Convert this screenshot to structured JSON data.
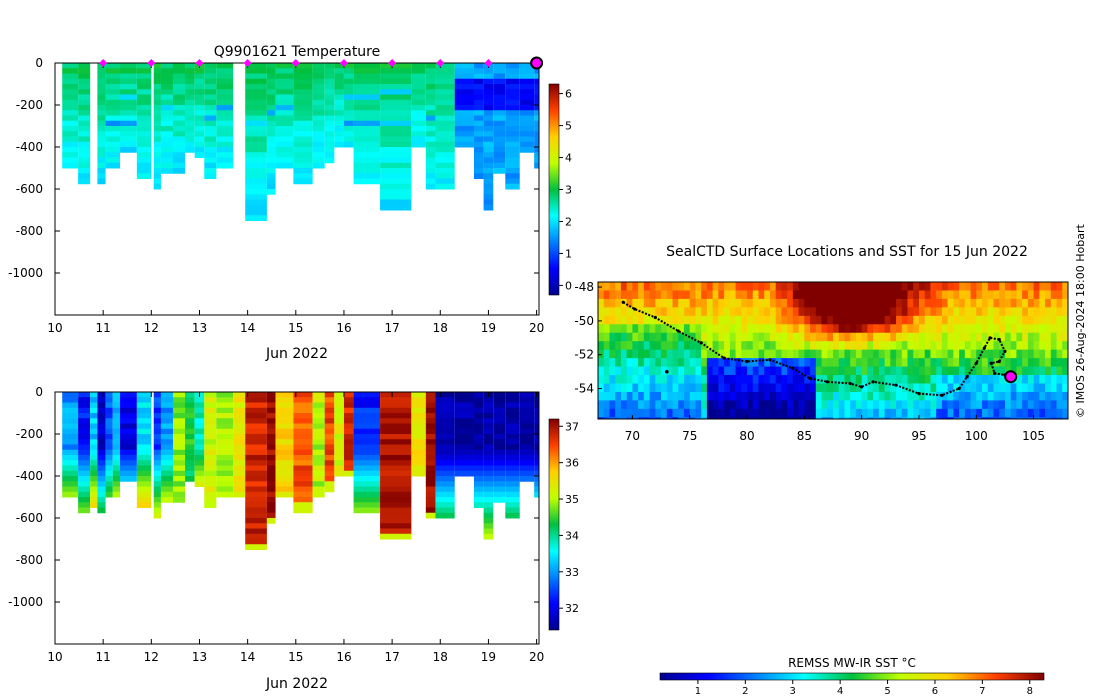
{
  "chart_data": [
    {
      "type": "heatmap",
      "title": "Q9901621  Temperature",
      "xlabel": "Jun 2022",
      "ylabel": "",
      "xlim": [
        10,
        20.05
      ],
      "ylim": [
        -1200,
        0
      ],
      "x_ticks": [
        10,
        11,
        12,
        13,
        14,
        15,
        16,
        17,
        18,
        19,
        20
      ],
      "y_ticks": [
        0,
        -200,
        -400,
        -600,
        -800,
        -1000
      ],
      "colorbar": {
        "min": -0.3,
        "max": 6.3,
        "ticks": [
          0,
          1,
          2,
          3,
          4,
          5,
          6
        ]
      },
      "surface_markers_x": [
        11,
        12,
        13,
        14,
        15,
        16,
        17,
        18,
        19
      ],
      "current_marker_x": 20,
      "profiles": [
        {
          "x": 10.15,
          "w": 0.33,
          "depth": 500
        },
        {
          "x": 10.48,
          "w": 0.25,
          "depth": 575
        },
        {
          "x": 10.88,
          "w": 0.17,
          "depth": 560
        },
        {
          "x": 11.05,
          "w": 0.3,
          "depth": 500
        },
        {
          "x": 11.35,
          "w": 0.35,
          "depth": 420
        },
        {
          "x": 11.7,
          "w": 0.3,
          "depth": 540
        },
        {
          "x": 12.05,
          "w": 0.15,
          "depth": 580
        },
        {
          "x": 12.2,
          "w": 0.25,
          "depth": 510
        },
        {
          "x": 12.45,
          "w": 0.25,
          "depth": 520
        },
        {
          "x": 12.7,
          "w": 0.2,
          "depth": 420
        },
        {
          "x": 12.9,
          "w": 0.2,
          "depth": 430
        },
        {
          "x": 13.1,
          "w": 0.25,
          "depth": 550
        },
        {
          "x": 13.35,
          "w": 0.35,
          "depth": 500
        },
        {
          "x": 13.95,
          "w": 0.45,
          "depth": 745
        },
        {
          "x": 14.4,
          "w": 0.18,
          "depth": 620
        },
        {
          "x": 14.58,
          "w": 0.37,
          "depth": 500
        },
        {
          "x": 14.95,
          "w": 0.4,
          "depth": 560
        },
        {
          "x": 15.35,
          "w": 0.25,
          "depth": 480
        },
        {
          "x": 15.6,
          "w": 0.2,
          "depth": 460
        },
        {
          "x": 15.8,
          "w": 0.2,
          "depth": 380
        },
        {
          "x": 16.0,
          "w": 0.2,
          "depth": 400
        },
        {
          "x": 16.2,
          "w": 0.55,
          "depth": 565
        },
        {
          "x": 16.75,
          "w": 0.65,
          "depth": 700
        },
        {
          "x": 17.4,
          "w": 0.3,
          "depth": 380
        },
        {
          "x": 17.7,
          "w": 0.2,
          "depth": 590
        },
        {
          "x": 17.9,
          "w": 0.4,
          "depth": 600
        },
        {
          "x": 18.3,
          "w": 0.4,
          "depth": 400
        },
        {
          "x": 18.7,
          "w": 0.2,
          "depth": 550
        },
        {
          "x": 18.9,
          "w": 0.2,
          "depth": 700
        },
        {
          "x": 19.1,
          "w": 0.25,
          "depth": 520
        },
        {
          "x": 19.35,
          "w": 0.3,
          "depth": 580
        },
        {
          "x": 19.65,
          "w": 0.3,
          "depth": 420
        },
        {
          "x": 19.95,
          "w": 0.1,
          "depth": 500
        }
      ],
      "temp_surface": 2.9,
      "temp_deep": 2.0,
      "temp_east_surface": 1.6,
      "temp_east_core": 0.4
    },
    {
      "type": "heatmap",
      "title": "",
      "xlabel": "Jun 2022",
      "ylabel": "",
      "xlim": [
        10,
        20.05
      ],
      "ylim": [
        -1200,
        0
      ],
      "x_ticks": [
        10,
        11,
        12,
        13,
        14,
        15,
        16,
        17,
        18,
        19,
        20
      ],
      "y_ticks": [
        0,
        -200,
        -400,
        -600,
        -800,
        -1000
      ],
      "colorbar": {
        "min": 31.4,
        "max": 37.2,
        "ticks": [
          32,
          33,
          34,
          35,
          36,
          37
        ]
      },
      "salinity_columns": [
        {
          "x": 10.15,
          "w": 0.33,
          "v": 33.0,
          "depth": 500
        },
        {
          "x": 10.48,
          "w": 0.25,
          "v": 32.2,
          "depth": 575
        },
        {
          "x": 10.73,
          "w": 0.15,
          "v": 33.3,
          "depth": 540
        },
        {
          "x": 10.88,
          "w": 0.17,
          "v": 31.8,
          "depth": 560
        },
        {
          "x": 11.05,
          "w": 0.15,
          "v": 32.6,
          "depth": 500
        },
        {
          "x": 11.2,
          "w": 0.15,
          "v": 33.1,
          "depth": 480
        },
        {
          "x": 11.35,
          "w": 0.35,
          "v": 32.0,
          "depth": 420
        },
        {
          "x": 11.7,
          "w": 0.3,
          "v": 33.4,
          "depth": 540
        },
        {
          "x": 12.05,
          "w": 0.15,
          "v": 32.5,
          "depth": 580
        },
        {
          "x": 12.2,
          "w": 0.25,
          "v": 33.0,
          "depth": 510
        },
        {
          "x": 12.45,
          "w": 0.25,
          "v": 34.8,
          "depth": 520
        },
        {
          "x": 12.7,
          "w": 0.2,
          "v": 34.3,
          "depth": 420
        },
        {
          "x": 12.9,
          "w": 0.2,
          "v": 33.8,
          "depth": 430
        },
        {
          "x": 13.1,
          "w": 0.25,
          "v": 35.2,
          "depth": 550
        },
        {
          "x": 13.35,
          "w": 0.35,
          "v": 34.9,
          "depth": 500
        },
        {
          "x": 13.7,
          "w": 0.25,
          "v": 35.4,
          "depth": 500
        },
        {
          "x": 13.95,
          "w": 0.45,
          "v": 36.8,
          "depth": 745
        },
        {
          "x": 14.4,
          "w": 0.18,
          "v": 37.1,
          "depth": 620
        },
        {
          "x": 14.58,
          "w": 0.37,
          "v": 35.6,
          "depth": 500
        },
        {
          "x": 14.95,
          "w": 0.4,
          "v": 36.4,
          "depth": 560
        },
        {
          "x": 15.35,
          "w": 0.25,
          "v": 35.0,
          "depth": 480
        },
        {
          "x": 15.6,
          "w": 0.2,
          "v": 36.5,
          "depth": 460
        },
        {
          "x": 15.8,
          "w": 0.2,
          "v": 35.2,
          "depth": 380
        },
        {
          "x": 16.0,
          "w": 0.2,
          "v": 36.7,
          "depth": 400
        },
        {
          "x": 16.2,
          "w": 0.55,
          "v": 32.3,
          "depth": 565
        },
        {
          "x": 16.75,
          "w": 0.65,
          "v": 37.0,
          "depth": 700
        },
        {
          "x": 17.4,
          "w": 0.3,
          "v": 35.5,
          "depth": 380
        },
        {
          "x": 17.7,
          "w": 0.2,
          "v": 37.1,
          "depth": 590
        },
        {
          "x": 17.9,
          "w": 0.4,
          "v": 31.5,
          "depth": 600
        },
        {
          "x": 18.3,
          "w": 0.4,
          "v": 31.5,
          "depth": 400
        },
        {
          "x": 18.7,
          "w": 0.2,
          "v": 31.5,
          "depth": 550
        },
        {
          "x": 18.9,
          "w": 0.2,
          "v": 31.5,
          "depth": 700
        },
        {
          "x": 19.1,
          "w": 0.25,
          "v": 31.5,
          "depth": 520
        },
        {
          "x": 19.35,
          "w": 0.3,
          "v": 31.5,
          "depth": 580
        },
        {
          "x": 19.65,
          "w": 0.3,
          "v": 31.5,
          "depth": 420
        },
        {
          "x": 19.95,
          "w": 0.1,
          "v": 31.5,
          "depth": 500
        }
      ]
    },
    {
      "type": "heatmap",
      "title": "SealCTD Surface Locations and SST for 15 Jun 2022",
      "xlabel": "",
      "ylabel": "",
      "xlim": [
        67,
        108
      ],
      "ylim": [
        -55.8,
        -47.7
      ],
      "x_ticks": [
        70,
        75,
        80,
        85,
        90,
        95,
        100,
        105
      ],
      "y_ticks": [
        -48,
        -50,
        -52,
        -54
      ],
      "colorbar": {
        "label": "REMSS MW-IR SST °C",
        "min": 0.2,
        "max": 8.3,
        "ticks": [
          1,
          2,
          3,
          4,
          5,
          6,
          7,
          8
        ]
      },
      "track": [
        [
          69.2,
          -48.9
        ],
        [
          70.2,
          -49.3
        ],
        [
          72,
          -49.8
        ],
        [
          74,
          -50.6
        ],
        [
          76,
          -51.3
        ],
        [
          78,
          -52.2
        ],
        [
          80,
          -52.4
        ],
        [
          82,
          -52.3
        ],
        [
          84,
          -52.8
        ],
        [
          85.5,
          -53.4
        ],
        [
          87,
          -53.6
        ],
        [
          89,
          -53.7
        ],
        [
          90,
          -53.9
        ],
        [
          91,
          -53.6
        ],
        [
          93,
          -53.8
        ],
        [
          95,
          -54.3
        ],
        [
          97,
          -54.4
        ],
        [
          98.5,
          -54.0
        ],
        [
          99.2,
          -53.3
        ],
        [
          100,
          -52.5
        ],
        [
          100.7,
          -51.6
        ],
        [
          101.2,
          -51.0
        ],
        [
          102,
          -51.1
        ],
        [
          102.5,
          -51.8
        ],
        [
          102,
          -52.4
        ],
        [
          101.3,
          -52.5
        ],
        [
          101.6,
          -53.1
        ],
        [
          102.5,
          -53.2
        ],
        [
          103,
          -53.3
        ]
      ],
      "current_position": [
        103,
        -53.3
      ],
      "scattered_points": [
        [
          73,
          -53
        ]
      ],
      "credit": "© IMOS 26-Aug-2024 18:00 Hobart"
    }
  ]
}
